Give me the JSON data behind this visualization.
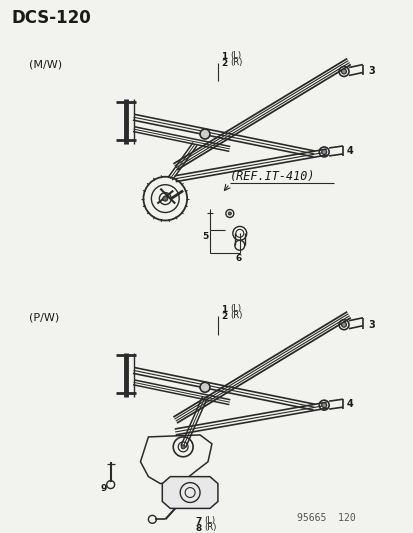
{
  "title": "DCS-120",
  "bg_color": "#f2f2ee",
  "line_color": "#2a2a2a",
  "text_color": "#1a1a1a",
  "fig_width": 4.14,
  "fig_height": 5.33,
  "dpi": 100,
  "label_mw": "(M/W)",
  "label_pw": "(P/W)",
  "ref_text": "(REF.IT-410)",
  "footer": "95665  120"
}
